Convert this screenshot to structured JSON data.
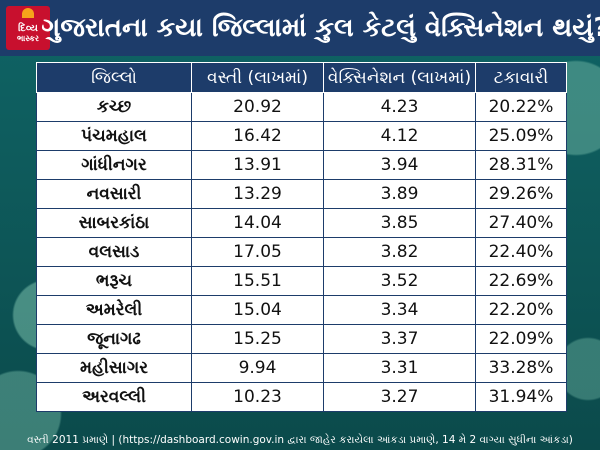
{
  "header": {
    "logo_line1": "દિવ્ય",
    "logo_line2": "ભાસ્કર",
    "title": "ગુજરાતના કયા જિલ્લામાં કુલ કેટલું વેક્સિનેશન થયું?"
  },
  "table": {
    "headers": [
      "જિલ્લો",
      "વસ્તી (લાખમાં)",
      "વેક્સિનેશન (લાખમાં)",
      "ટકાવારી"
    ],
    "rows": [
      [
        "કચ્છ",
        "20.92",
        "4.23",
        "20.22%"
      ],
      [
        "પંચમહાલ",
        "16.42",
        "4.12",
        "25.09%"
      ],
      [
        "ગાંધીનગર",
        "13.91",
        "3.94",
        "28.31%"
      ],
      [
        "નવસારી",
        "13.29",
        "3.89",
        "29.26%"
      ],
      [
        "સાબરકાંઠા",
        "14.04",
        "3.85",
        "27.40%"
      ],
      [
        "વલસાડ",
        "17.05",
        "3.82",
        "22.40%"
      ],
      [
        "ભરૂચ",
        "15.51",
        "3.52",
        "22.69%"
      ],
      [
        "અમરેલી",
        "15.04",
        "3.34",
        "22.20%"
      ],
      [
        "જૂનાગઢ",
        "15.25",
        "3.37",
        "22.09%"
      ],
      [
        "મહીસાગર",
        "9.94",
        "3.31",
        "33.28%"
      ],
      [
        "અરવલ્લી",
        "10.23",
        "3.27",
        "31.94%"
      ]
    ]
  },
  "footer": {
    "note": "વસ્તી 2011 પ્રમાણે | (https://dashboard.cowin.gov.in દ્વારા જાહેર કરાયેલા આંકડા પ્રમાણે, 14 મે 2 વાગ્યા સુધીના આંકડા)"
  },
  "colors": {
    "header_bg": "#1d3c6a",
    "logo_bg": "#c8102e",
    "page_bg": "#0e5a5b"
  }
}
